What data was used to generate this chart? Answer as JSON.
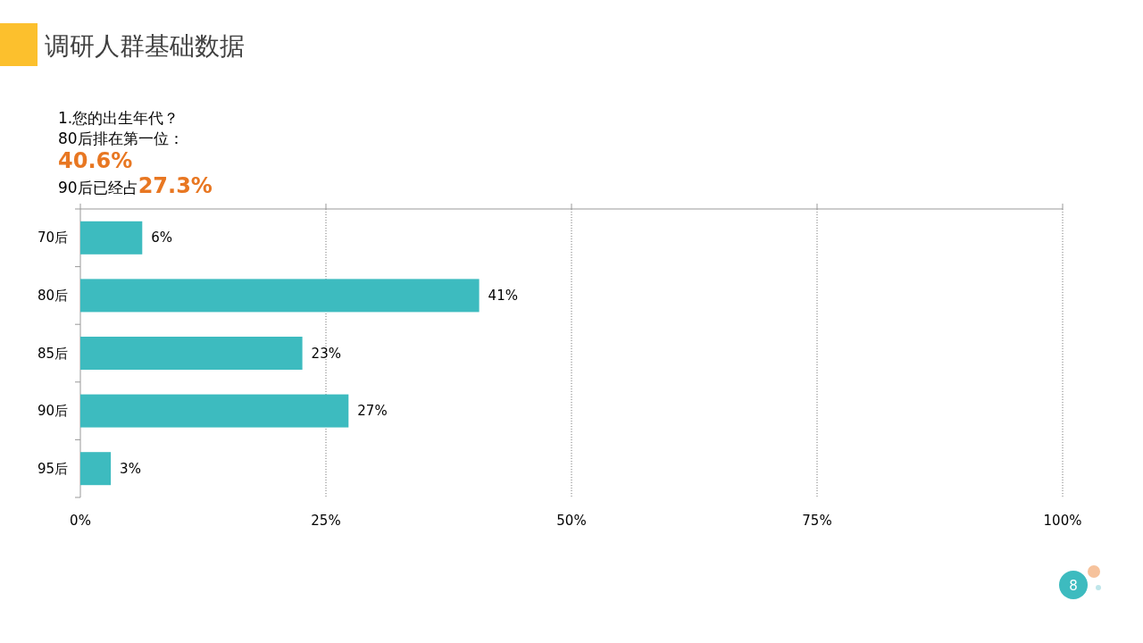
{
  "chart_data": {
    "type": "bar",
    "orientation": "horizontal",
    "title": "调研人群基础数据",
    "annotations": [
      "1.您的出生年代？",
      "80后排在第一位：",
      "40.6%",
      "90后已经占**27.3%**",
      "8"
    ],
    "categories": [
      "70后",
      "80后",
      "85后",
      "90后",
      "95后"
    ],
    "values": [
      6.3,
      40.6,
      22.6,
      27.3,
      3.1
    ],
    "value_labels": [
      "6%",
      "41%",
      "23%",
      "27%",
      "3%"
    ],
    "color": "#3dbbbf",
    "xlim": [
      0,
      100
    ],
    "xticks": [
      {
        "value": 0,
        "label": "0%"
      },
      {
        "value": 25,
        "label": "25%"
      },
      {
        "value": 50,
        "label": "50%"
      },
      {
        "value": 75,
        "label": "75%"
      },
      {
        "value": 100,
        "label": "100%"
      }
    ],
    "grid": "x"
  }
}
